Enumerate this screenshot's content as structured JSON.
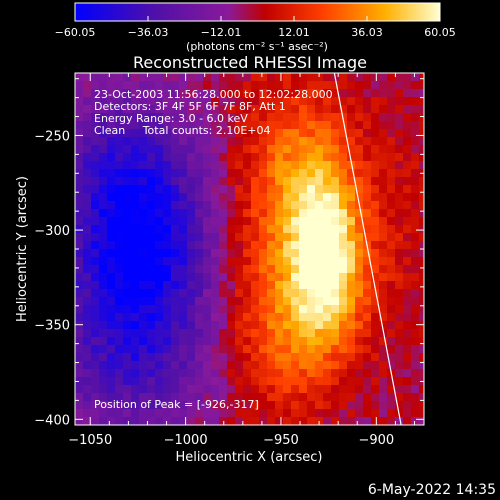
{
  "chart_data": {
    "type": "heatmap",
    "title": "Reconstructed RHESSI Image",
    "xlabel": "Heliocentric X (arcsec)",
    "ylabel": "Heliocentric Y (arcsec)",
    "xlim": [
      -1058,
      -875
    ],
    "ylim": [
      -403,
      -217
    ],
    "x_ticks": [
      -1050,
      -1000,
      -950,
      -900
    ],
    "y_ticks": [
      -250,
      -300,
      -350,
      -400
    ],
    "x_tick_labels": [
      "−1050",
      "−1000",
      "−950",
      "−900"
    ],
    "y_tick_labels": [
      "−250",
      "−300",
      "−350",
      "−400"
    ],
    "colorbar": {
      "min": -60.05,
      "max": 60.05,
      "tick_values": [
        -60.05,
        -36.03,
        -12.01,
        12.01,
        36.03,
        60.05
      ],
      "tick_labels": [
        "−60.05",
        "−36.03",
        "−12.01",
        "12.01",
        "36.03",
        "60.05"
      ],
      "unit_label": "(photons cm⁻² s⁻¹ asec⁻²)"
    },
    "annotations": [
      "23-Oct-2003 11:56:28.000 to 12:02:28.000",
      "Detectors: 3F 4F 5F 6F 7F 8F, Att 1",
      "Energy Range: 3.0 - 6.0 keV",
      "Clean     Total counts: 2.10E+04"
    ],
    "peak_label": "Position of Peak = [-926,-317]",
    "peak": {
      "x": -926,
      "y": -317,
      "value": 60.05
    },
    "features": [
      {
        "x": -1025,
        "y": -310,
        "value": -58,
        "sx": 28,
        "sy": 40
      },
      {
        "x": -1035,
        "y": -260,
        "value": -15,
        "sx": 25,
        "sy": 25
      },
      {
        "x": -1030,
        "y": -375,
        "value": -20,
        "sx": 30,
        "sy": 25
      },
      {
        "x": -926,
        "y": -317,
        "value": 62,
        "sx": 14,
        "sy": 30
      },
      {
        "x": -935,
        "y": -270,
        "value": 30,
        "sx": 18,
        "sy": 30
      },
      {
        "x": -945,
        "y": -355,
        "value": 22,
        "sx": 20,
        "sy": 30
      },
      {
        "x": -960,
        "y": -300,
        "value": 18,
        "sx": 20,
        "sy": 60
      },
      {
        "x": -890,
        "y": -300,
        "value": 10,
        "sx": 15,
        "sy": 60
      }
    ],
    "limb_line": {
      "x1": -922,
      "y1": -217,
      "x2": -887,
      "y2": -403
    },
    "grid": false
  },
  "footer": {
    "date": "6-May-2022 14:35"
  }
}
